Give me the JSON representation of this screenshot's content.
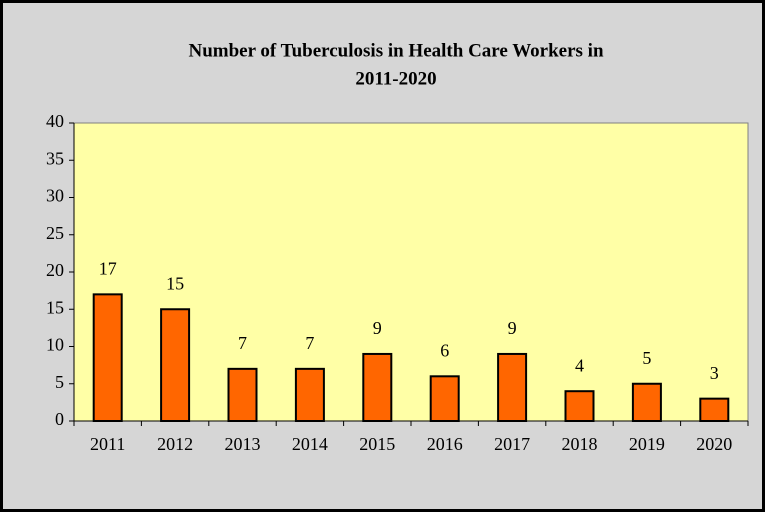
{
  "chart_data": {
    "type": "bar",
    "title": [
      "Number of Tuberculosis in Health Care Workers in",
      "2011-2020"
    ],
    "categories": [
      "2011",
      "2012",
      "2013",
      "2014",
      "2015",
      "2016",
      "2017",
      "2018",
      "2019",
      "2020"
    ],
    "values": [
      17,
      15,
      7,
      7,
      9,
      6,
      9,
      4,
      5,
      3
    ],
    "color": "#ff6600",
    "ylim": [
      0,
      40
    ],
    "yticks": [
      0,
      5,
      10,
      15,
      20,
      25,
      30,
      35,
      40
    ],
    "grid": false
  }
}
